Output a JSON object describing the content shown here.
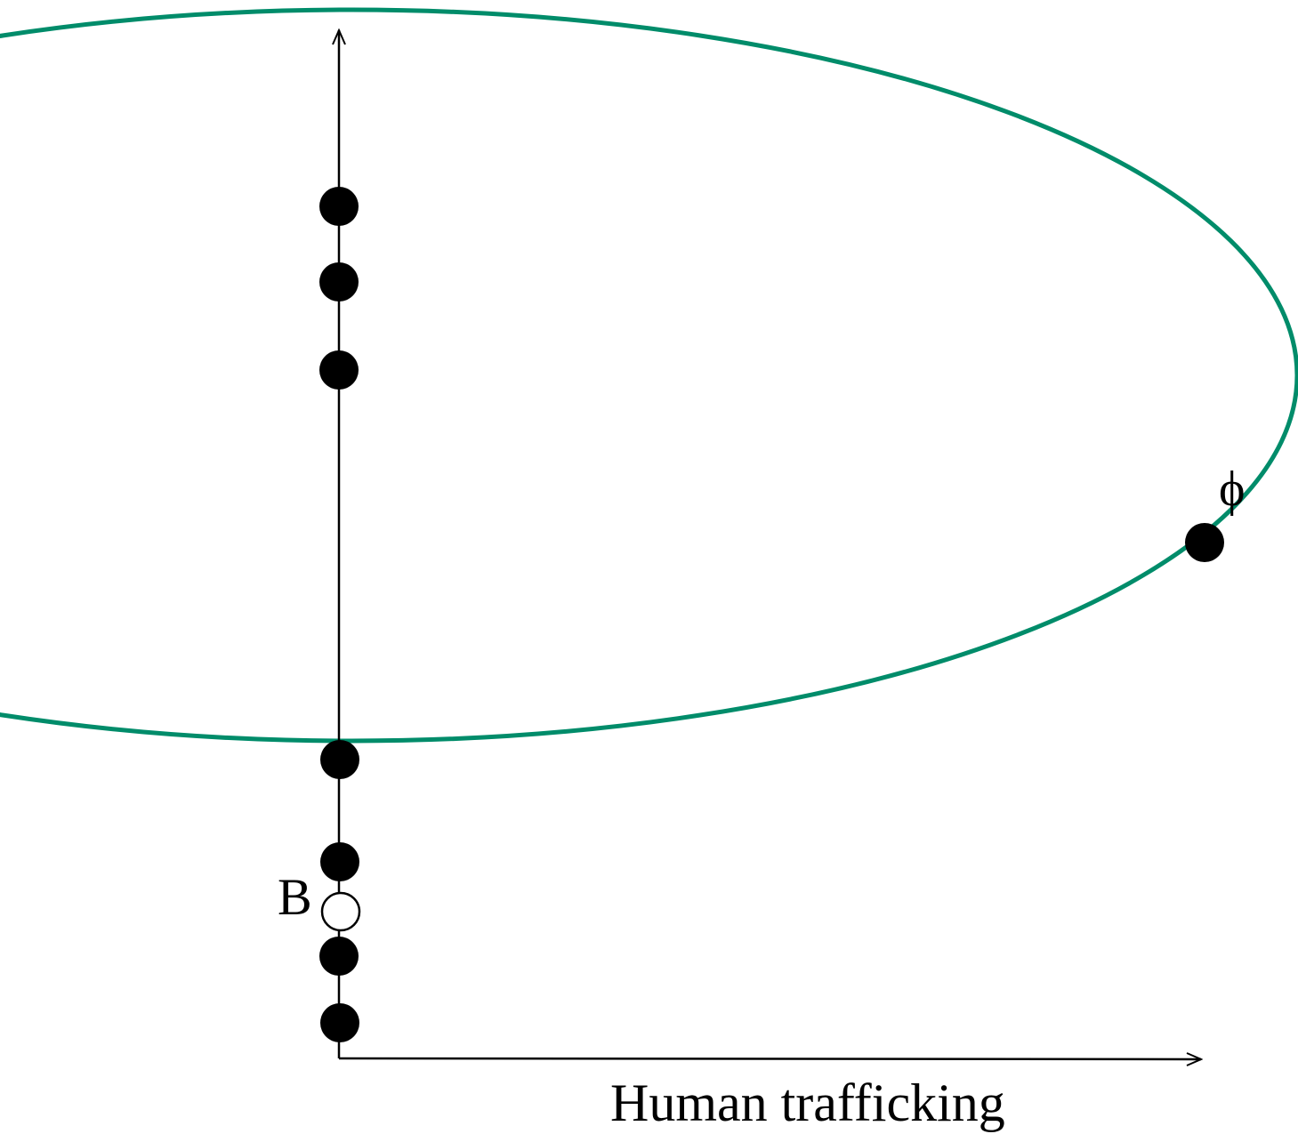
{
  "diagram": {
    "x_axis_label": "Human trafficking",
    "point_b_label": "B",
    "point_phi_label": "ϕ",
    "colors": {
      "ellipse": "#008c6a",
      "axis": "#000000",
      "point": "#000000",
      "background": "#ffffff"
    }
  }
}
